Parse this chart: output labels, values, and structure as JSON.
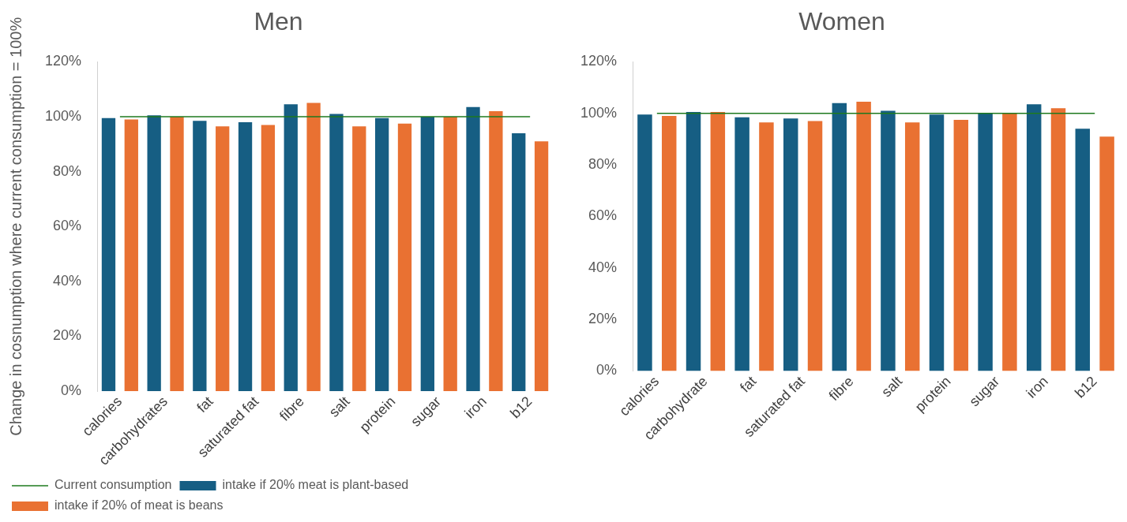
{
  "chart_data": [
    {
      "type": "bar",
      "title": "Men",
      "ylabel": "Change in cosnumption where current consumption = 100%",
      "categories": [
        "calories",
        "carbohydrates",
        "fat",
        "saturated fat",
        "fibre",
        "salt",
        "protein",
        "sugar",
        "iron",
        "b12"
      ],
      "series": [
        {
          "name": "intake if 20% meat is plant-based",
          "color": "#165e83",
          "values": [
            99.5,
            100.5,
            98.5,
            98,
            104.5,
            101,
            99.5,
            100,
            103.5,
            94
          ]
        },
        {
          "name": "intake if 20% of meat is beans",
          "color": "#e97132",
          "values": [
            99,
            100,
            96.5,
            97,
            105,
            96.5,
            97.5,
            100,
            102,
            91
          ]
        },
        {
          "name": "Current consumption",
          "type": "line",
          "color": "#1e7a1e",
          "values": [
            100,
            100,
            100,
            100,
            100,
            100,
            100,
            100,
            100,
            100
          ]
        }
      ],
      "ylim": [
        0,
        120
      ],
      "yticks": [
        {
          "value": 0,
          "label": "0%"
        },
        {
          "value": 20,
          "label": "20%"
        },
        {
          "value": 40,
          "label": "40%"
        },
        {
          "value": 60,
          "label": "60%"
        },
        {
          "value": 80,
          "label": "80%"
        },
        {
          "value": 100,
          "label": "100%"
        },
        {
          "value": 120,
          "label": "120%"
        }
      ],
      "grid": false,
      "legend": "bottom left",
      "marker": "none"
    },
    {
      "type": "bar",
      "title": "Women",
      "categories": [
        "calories",
        "carbohydrate",
        "fat",
        "saturated fat",
        "fibre",
        "salt",
        "protein",
        "sugar",
        "iron",
        "b12"
      ],
      "series": [
        {
          "color": "#165e83",
          "values": [
            99.5,
            100.5,
            98.5,
            98,
            104,
            101,
            99.5,
            100,
            103.5,
            94
          ]
        },
        {
          "color": "#e97132",
          "values": [
            99,
            100.5,
            96.5,
            97,
            104.5,
            96.5,
            97.5,
            100,
            102,
            91
          ]
        },
        {
          "type": "line",
          "color": "#1e7a1e",
          "values": [
            100,
            100,
            100,
            100,
            100,
            100,
            100,
            100,
            100,
            100
          ]
        }
      ],
      "ylim": [
        0,
        120
      ],
      "yticks": [
        {
          "value": 0,
          "label": "0%"
        },
        {
          "value": 20,
          "label": "20%"
        },
        {
          "value": 40,
          "label": "40%"
        },
        {
          "value": 60,
          "label": "60%"
        },
        {
          "value": 80,
          "label": "80%"
        },
        {
          "value": 100,
          "label": "100%"
        },
        {
          "value": 120,
          "label": "120%"
        }
      ],
      "grid": false,
      "legend": false,
      "marker": "none"
    }
  ]
}
